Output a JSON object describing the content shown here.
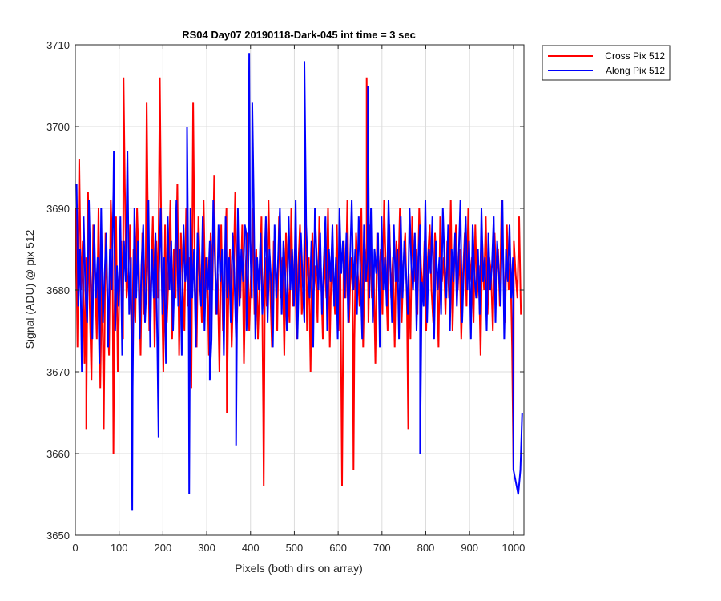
{
  "chart_data": {
    "type": "line",
    "title": "RS04 Day07 20190118-Dark-045 int time = 3 sec",
    "xlabel": "Pixels (both dirs on array)",
    "ylabel": "Signal (ADU) @ pix 512",
    "xlim": [
      0,
      1024
    ],
    "ylim": [
      3650,
      3710
    ],
    "xticks": [
      0,
      100,
      200,
      300,
      400,
      500,
      600,
      700,
      800,
      900,
      1000
    ],
    "yticks": [
      3650,
      3660,
      3670,
      3680,
      3690,
      3700,
      3710
    ],
    "grid": true,
    "legend_position": "outside-top-right",
    "series": [
      {
        "name": "Cross Pix 512",
        "color": "#ff0000",
        "x_start": 1,
        "x_step": 4,
        "values": [
          3690,
          3673,
          3696,
          3680,
          3686,
          3671,
          3684,
          3692,
          3678,
          3669,
          3688,
          3682,
          3674,
          3690,
          3668,
          3683,
          3663,
          3687,
          3679,
          3672,
          3691,
          3684,
          3676,
          3689,
          3670,
          3681,
          3686,
          3674,
          3693,
          3679,
          3682,
          3688,
          3671,
          3685,
          3676,
          3690,
          3683,
          3672,
          3687,
          3677,
          3684,
          3692,
          3675,
          3681,
          3689,
          3673,
          3686,
          3679,
          3706,
          3683,
          3670,
          3688,
          3676,
          3682,
          3691,
          3674,
          3685,
          3679,
          3693,
          3672,
          3687,
          3681,
          3675,
          3690,
          3678,
          3684,
          3668,
          3703,
          3680,
          3673,
          3689,
          3682,
          3676,
          3691,
          3679,
          3684,
          3672,
          3687,
          3680,
          3694,
          3677,
          3682,
          3670,
          3688,
          3675,
          3683,
          3690,
          3678,
          3685,
          3673,
          3681,
          3692,
          3676,
          3684,
          3679,
          3688,
          3671,
          3683,
          3687,
          3675,
          3682,
          3690,
          3677,
          3685,
          3674,
          3681,
          3689,
          3665,
          3684,
          3678,
          3691,
          3680,
          3673,
          3686,
          3682,
          3675,
          3689,
          3679,
          3684,
          3672,
          3687,
          3681,
          3676,
          3690,
          3678,
          3685,
          3674,
          3683,
          3688,
          3677,
          3681,
          3692,
          3675,
          3684,
          3670,
          3687,
          3680,
          3683,
          3676,
          3689,
          3682,
          3674,
          3685,
          3679,
          3690,
          3673,
          3684,
          3681,
          3677,
          3688,
          3675,
          3683,
          3656,
          3686,
          3679,
          3691,
          3676,
          3684,
          3680,
          3674,
          3687,
          3682,
          3678,
          3690,
          3673,
          3685,
          3681,
          3676,
          3688,
          3679,
          3683,
          3671,
          3687,
          3680,
          3685,
          3677,
          3691,
          3682,
          3675,
          3688,
          3679,
          3684,
          3673,
          3686,
          3681,
          3690,
          3676,
          3683,
          3687,
          3678,
          3682,
          3674,
          3689,
          3681,
          3685,
          3677,
          3690,
          3683,
          3679,
          3686,
          3675,
          3684,
          3688,
          3680,
          3676,
          3687,
          3682,
          3673,
          3689,
          3681,
          3684,
          3677,
          3686,
          3679,
          3691,
          3675,
          3683,
          3688,
          3680,
          3685,
          3674,
          3682,
          3687,
          3678,
          3690,
          3681,
          3684,
          3676,
          3688,
          3679,
          3683,
          3672,
          3686,
          3680,
          3689,
          3677,
          3684,
          3682,
          3675,
          3687,
          3681,
          3685,
          3678,
          3691,
          3683,
          3676,
          3688,
          3680,
          3684,
          3673,
          3686,
          3682,
          3679,
          3689,
          3677
        ],
        "peaks": [
          [
            9,
            3696
          ],
          [
            25,
            3663
          ],
          [
            87,
            3660
          ],
          [
            110,
            3706
          ],
          [
            163,
            3703
          ],
          [
            346,
            3665
          ],
          [
            430,
            3656
          ],
          [
            635,
            3658
          ],
          [
            665,
            3706
          ],
          [
            760,
            3663
          ],
          [
            1000,
            3658
          ]
        ]
      },
      {
        "name": "Along Pix 512",
        "color": "#0000ff",
        "x_start": 3,
        "x_step": 4,
        "values": [
          3693,
          3678,
          3685,
          3670,
          3689,
          3680,
          3676,
          3691,
          3682,
          3674,
          3688,
          3679,
          3684,
          3671,
          3690,
          3676,
          3682,
          3687,
          3673,
          3685,
          3680,
          3692,
          3675,
          3683,
          3678,
          3689,
          3672,
          3686,
          3681,
          3697,
          3677,
          3684,
          3668,
          3690,
          3679,
          3686,
          3674,
          3683,
          3688,
          3676,
          3681,
          3691,
          3673,
          3685,
          3679,
          3687,
          3674,
          3682,
          3690,
          3677,
          3684,
          3671,
          3689,
          3680,
          3686,
          3675,
          3683,
          3691,
          3678,
          3685,
          3672,
          3688,
          3681,
          3684,
          3676,
          3690,
          3679,
          3685,
          3673,
          3687,
          3682,
          3678,
          3689,
          3675,
          3684,
          3680,
          3686,
          3674,
          3691,
          3683,
          3677,
          3688,
          3681,
          3685,
          3672,
          3689,
          3679,
          3684,
          3676,
          3687,
          3682,
          3674,
          3690,
          3678,
          3685,
          3681,
          3688,
          3675,
          3683,
          3686,
          3679,
          3692,
          3674,
          3684,
          3680,
          3687,
          3677,
          3682,
          3689,
          3676,
          3685,
          3681,
          3673,
          3688,
          3679,
          3684,
          3690,
          3677,
          3686,
          3682,
          3675,
          3689,
          3680,
          3685,
          3678,
          3691,
          3674,
          3683,
          3687,
          3681,
          3676,
          3688,
          3682,
          3679,
          3686,
          3673,
          3690,
          3684,
          3680,
          3687,
          3677,
          3683,
          3689,
          3675,
          3685,
          3681,
          3688,
          3678,
          3684,
          3674,
          3690,
          3682,
          3686,
          3679,
          3687,
          3676,
          3683,
          3691,
          3680,
          3685,
          3677,
          3689,
          3682,
          3674,
          3688,
          3681,
          3684,
          3679,
          3690,
          3676,
          3685,
          3682,
          3687,
          3673,
          3689,
          3680,
          3684,
          3678,
          3691,
          3683,
          3676,
          3688,
          3681,
          3685,
          3674,
          3689,
          3679,
          3686,
          3682,
          3677,
          3690,
          3683,
          3680,
          3687,
          3675,
          3684,
          3688,
          3681,
          3678,
          3691,
          3676,
          3685,
          3682,
          3689,
          3674,
          3686,
          3680,
          3684,
          3677,
          3690,
          3683,
          3679,
          3688,
          3675,
          3685,
          3681,
          3687,
          3678,
          3684,
          3691,
          3676,
          3683,
          3689,
          3680,
          3686,
          3674,
          3688,
          3682,
          3679,
          3685,
          3677,
          3690,
          3681,
          3684,
          3675,
          3687,
          3680,
          3683,
          3689,
          3676,
          3686,
          3682,
          3678,
          3691,
          3674,
          3685,
          3681,
          3688,
          3679,
          3684
        ],
        "peaks": [
          [
            88,
            3697
          ],
          [
            130,
            3653
          ],
          [
            190,
            3662
          ],
          [
            255,
            3700
          ],
          [
            260,
            3655
          ],
          [
            307,
            3669
          ],
          [
            367,
            3661
          ],
          [
            390,
            3687
          ],
          [
            397,
            3709
          ],
          [
            404,
            3703
          ],
          [
            523,
            3708
          ],
          [
            668,
            3705
          ],
          [
            787,
            3660
          ],
          [
            1000,
            3658
          ],
          [
            1011,
            3655
          ],
          [
            1016,
            3658
          ],
          [
            1020,
            3665
          ]
        ]
      }
    ]
  }
}
